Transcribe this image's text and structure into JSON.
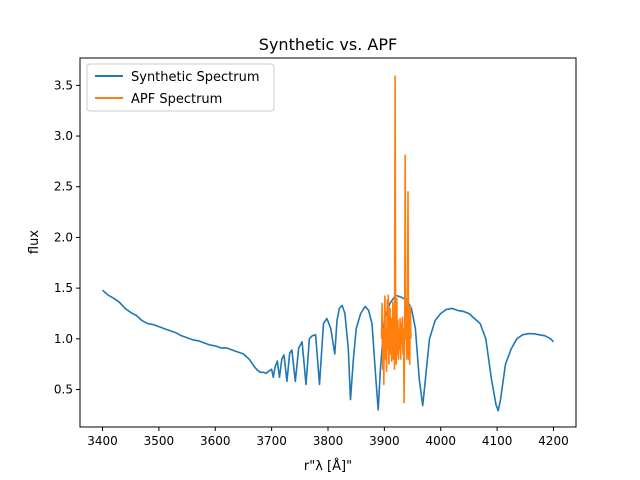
{
  "chart_data": {
    "type": "line",
    "title": "Synthetic vs. APF",
    "xlabel": "r\"λ [Å]\"",
    "ylabel": "flux",
    "xlim": [
      3360,
      4240
    ],
    "ylim": [
      0.13,
      3.77
    ],
    "xticks": [
      3400,
      3500,
      3600,
      3700,
      3800,
      3900,
      4000,
      4100,
      4200
    ],
    "xtick_labels": [
      "3400",
      "3500",
      "3600",
      "3700",
      "3800",
      "3900",
      "4000",
      "4100",
      "4200"
    ],
    "yticks": [
      0.5,
      1.0,
      1.5,
      2.0,
      2.5,
      3.0,
      3.5
    ],
    "ytick_labels": [
      "0.5",
      "1.0",
      "1.5",
      "2.0",
      "2.5",
      "3.0",
      "3.5"
    ],
    "legend_position": "upper-left",
    "series": [
      {
        "name": "Synthetic Spectrum",
        "color": "#1f77b4",
        "points": [
          [
            3400,
            1.48
          ],
          [
            3410,
            1.43
          ],
          [
            3420,
            1.4
          ],
          [
            3430,
            1.36
          ],
          [
            3440,
            1.3
          ],
          [
            3450,
            1.26
          ],
          [
            3460,
            1.23
          ],
          [
            3470,
            1.18
          ],
          [
            3480,
            1.15
          ],
          [
            3490,
            1.14
          ],
          [
            3500,
            1.12
          ],
          [
            3510,
            1.1
          ],
          [
            3520,
            1.08
          ],
          [
            3530,
            1.06
          ],
          [
            3540,
            1.03
          ],
          [
            3550,
            1.01
          ],
          [
            3560,
            0.99
          ],
          [
            3570,
            0.98
          ],
          [
            3580,
            0.96
          ],
          [
            3590,
            0.94
          ],
          [
            3600,
            0.93
          ],
          [
            3610,
            0.91
          ],
          [
            3620,
            0.91
          ],
          [
            3630,
            0.89
          ],
          [
            3640,
            0.87
          ],
          [
            3650,
            0.85
          ],
          [
            3660,
            0.8
          ],
          [
            3665,
            0.76
          ],
          [
            3670,
            0.72
          ],
          [
            3675,
            0.69
          ],
          [
            3680,
            0.67
          ],
          [
            3685,
            0.67
          ],
          [
            3690,
            0.66
          ],
          [
            3695,
            0.68
          ],
          [
            3700,
            0.7
          ],
          [
            3703,
            0.62
          ],
          [
            3706,
            0.72
          ],
          [
            3710,
            0.78
          ],
          [
            3714,
            0.62
          ],
          [
            3718,
            0.8
          ],
          [
            3722,
            0.84
          ],
          [
            3727,
            0.58
          ],
          [
            3732,
            0.86
          ],
          [
            3736,
            0.89
          ],
          [
            3742,
            0.58
          ],
          [
            3748,
            0.91
          ],
          [
            3754,
            0.97
          ],
          [
            3761,
            0.55
          ],
          [
            3767,
            1.0
          ],
          [
            3772,
            1.03
          ],
          [
            3778,
            1.04
          ],
          [
            3785,
            0.55
          ],
          [
            3792,
            1.15
          ],
          [
            3798,
            1.2
          ],
          [
            3805,
            1.1
          ],
          [
            3812,
            0.85
          ],
          [
            3816,
            1.18
          ],
          [
            3820,
            1.3
          ],
          [
            3825,
            1.33
          ],
          [
            3830,
            1.25
          ],
          [
            3836,
            0.9
          ],
          [
            3840,
            0.4
          ],
          [
            3845,
            0.8
          ],
          [
            3850,
            1.1
          ],
          [
            3858,
            1.25
          ],
          [
            3866,
            1.32
          ],
          [
            3872,
            1.28
          ],
          [
            3878,
            1.15
          ],
          [
            3885,
            0.6
          ],
          [
            3889,
            0.3
          ],
          [
            3893,
            0.7
          ],
          [
            3900,
            1.2
          ],
          [
            3910,
            1.35
          ],
          [
            3920,
            1.43
          ],
          [
            3930,
            1.41
          ],
          [
            3940,
            1.38
          ],
          [
            3948,
            1.3
          ],
          [
            3955,
            1.1
          ],
          [
            3962,
            0.6
          ],
          [
            3968,
            0.34
          ],
          [
            3972,
            0.55
          ],
          [
            3980,
            1.0
          ],
          [
            3990,
            1.18
          ],
          [
            4000,
            1.25
          ],
          [
            4010,
            1.29
          ],
          [
            4020,
            1.3
          ],
          [
            4030,
            1.28
          ],
          [
            4040,
            1.27
          ],
          [
            4050,
            1.25
          ],
          [
            4060,
            1.2
          ],
          [
            4070,
            1.15
          ],
          [
            4080,
            1.0
          ],
          [
            4090,
            0.6
          ],
          [
            4098,
            0.35
          ],
          [
            4102,
            0.29
          ],
          [
            4106,
            0.4
          ],
          [
            4115,
            0.75
          ],
          [
            4125,
            0.9
          ],
          [
            4135,
            1.0
          ],
          [
            4145,
            1.04
          ],
          [
            4155,
            1.05
          ],
          [
            4165,
            1.05
          ],
          [
            4175,
            1.04
          ],
          [
            4185,
            1.03
          ],
          [
            4195,
            1.0
          ],
          [
            4200,
            0.97
          ]
        ]
      },
      {
        "name": "APF Spectrum",
        "color": "#ff7f0e",
        "points": [
          [
            3895,
            1.0
          ],
          [
            3896,
            1.35
          ],
          [
            3897,
            0.7
          ],
          [
            3898,
            1.1
          ],
          [
            3899,
            0.55
          ],
          [
            3900,
            1.2
          ],
          [
            3901,
            1.42
          ],
          [
            3902,
            0.8
          ],
          [
            3903,
            1.1
          ],
          [
            3904,
            0.68
          ],
          [
            3905,
            1.38
          ],
          [
            3906,
            0.9
          ],
          [
            3907,
            1.43
          ],
          [
            3908,
            0.75
          ],
          [
            3909,
            1.0
          ],
          [
            3910,
            1.3
          ],
          [
            3911,
            0.85
          ],
          [
            3912,
            1.2
          ],
          [
            3913,
            0.78
          ],
          [
            3914,
            1.1
          ],
          [
            3915,
            1.36
          ],
          [
            3916,
            0.8
          ],
          [
            3917,
            1.2
          ],
          [
            3918,
            0.7
          ],
          [
            3919,
            3.59
          ],
          [
            3920,
            1.2
          ],
          [
            3921,
            0.75
          ],
          [
            3922,
            1.4
          ],
          [
            3923,
            0.85
          ],
          [
            3924,
            1.18
          ],
          [
            3925,
            0.8
          ],
          [
            3926,
            1.1
          ],
          [
            3927,
            0.9
          ],
          [
            3928,
            1.2
          ],
          [
            3929,
            0.8
          ],
          [
            3930,
            1.15
          ],
          [
            3931,
            0.95
          ],
          [
            3932,
            1.21
          ],
          [
            3933,
            0.85
          ],
          [
            3934,
            1.1
          ],
          [
            3935,
            0.37
          ],
          [
            3936,
            1.2
          ],
          [
            3937,
            2.81
          ],
          [
            3938,
            1.0
          ],
          [
            3939,
            1.4
          ],
          [
            3940,
            0.8
          ],
          [
            3941,
            1.2
          ],
          [
            3942,
            2.45
          ],
          [
            3943,
            0.8
          ],
          [
            3944,
            1.3
          ],
          [
            3945,
            0.75
          ],
          [
            3946,
            1.32
          ],
          [
            3947,
            1.0
          ]
        ]
      }
    ]
  }
}
